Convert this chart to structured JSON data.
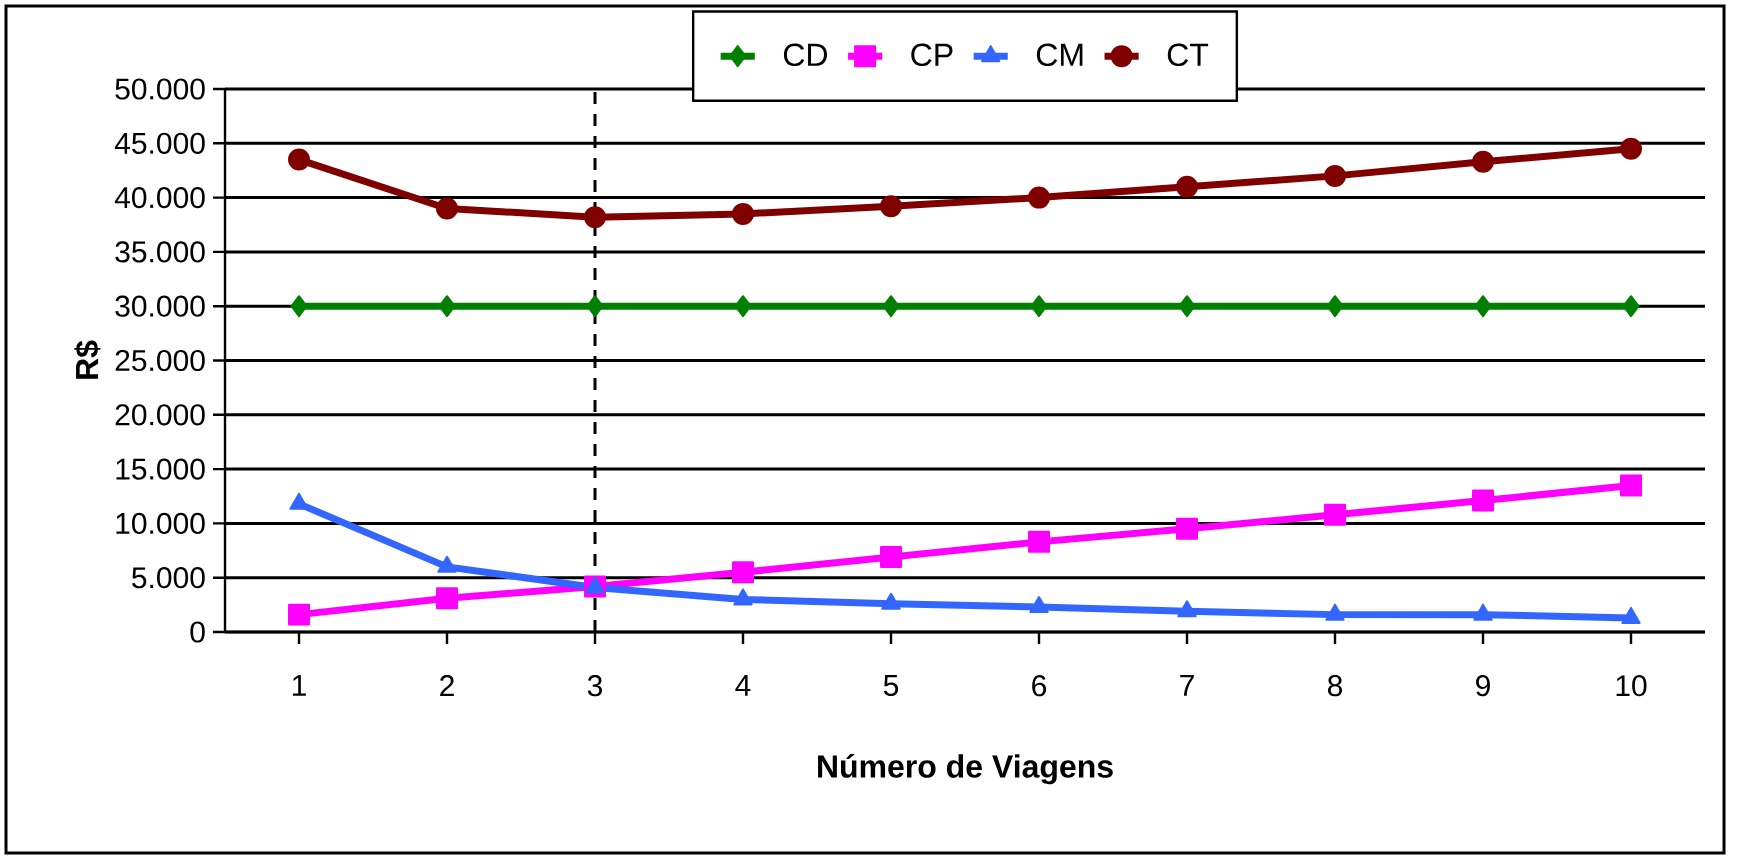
{
  "chart_data": {
    "type": "line",
    "xlabel": "Número de Viagens",
    "ylabel": "R$",
    "x": [
      1,
      2,
      3,
      4,
      5,
      6,
      7,
      8,
      9,
      10
    ],
    "xlim": [
      0.5,
      10.5
    ],
    "xticks": [
      1,
      2,
      3,
      4,
      5,
      6,
      7,
      8,
      9,
      10
    ],
    "ylim": [
      0,
      50000
    ],
    "yticks": [
      {
        "value": 0,
        "label": "0"
      },
      {
        "value": 5000,
        "label": "5.000"
      },
      {
        "value": 10000,
        "label": "10.000"
      },
      {
        "value": 15000,
        "label": "15.000"
      },
      {
        "value": 20000,
        "label": "20.000"
      },
      {
        "value": 25000,
        "label": "25.000"
      },
      {
        "value": 30000,
        "label": "30.000"
      },
      {
        "value": 35000,
        "label": "35.000"
      },
      {
        "value": 40000,
        "label": "40.000"
      },
      {
        "value": 45000,
        "label": "45.000"
      },
      {
        "value": 50000,
        "label": "50.000"
      }
    ],
    "grid": "y",
    "legend": "top",
    "line_style": "solid",
    "series": [
      {
        "name": "CD",
        "color": "#008000",
        "marker": "diamond",
        "values": [
          30000,
          30000,
          30000,
          30000,
          30000,
          30000,
          30000,
          30000,
          30000,
          30000
        ]
      },
      {
        "name": "CP",
        "color": "#ff00ff",
        "marker": "square",
        "values": [
          1600,
          3100,
          4200,
          5500,
          6900,
          8300,
          9500,
          10800,
          12100,
          13500
        ]
      },
      {
        "name": "CM",
        "color": "#3366ff",
        "marker": "triangle",
        "values": [
          11800,
          6000,
          4100,
          3000,
          2600,
          2300,
          1900,
          1600,
          1600,
          1300
        ]
      },
      {
        "name": "CT",
        "color": "#800000",
        "marker": "circle",
        "values": [
          43500,
          39000,
          38200,
          38500,
          39200,
          40000,
          41000,
          42000,
          43300,
          44500
        ]
      }
    ],
    "ref_lines": [
      {
        "axis": "x",
        "value": 3,
        "color": "#000000",
        "line_style": "dashed"
      }
    ]
  }
}
